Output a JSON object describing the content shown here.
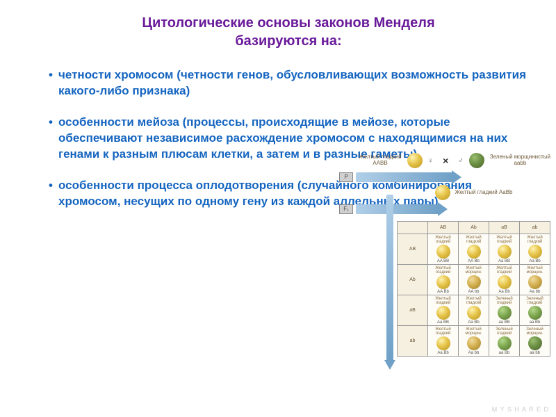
{
  "title_line1": "Цитологические основы законов Менделя",
  "title_line2": "базируются на:",
  "bullets": [
    "четности хромосом (четности генов, обусловливающих возможность развития какого-либо признака)",
    "особенности мейоза (процессы, происходящие в мейозе, которые обеспечивают независимое расхождение хромосом с находящимися на них генами к разным плюсам клетки, а затем и в разные гаметы)",
    "особенности процесса оплодотворения (случайного комбинирования хромосом, несущих по одному гену из каждой аллельных пары)"
  ],
  "colors": {
    "title": "#6a1b9a",
    "bullet_text": "#1565c0",
    "arrow_grad_start": "#b0cfe8",
    "arrow_grad_end": "#6fa0c7",
    "cell_label": "#8a6d3b",
    "border": "#999999",
    "background": "#ffffff"
  },
  "diagram": {
    "parent_female": {
      "label": "Желтый гладкий",
      "genotype": "AABB",
      "phenotype": "yellow-smooth"
    },
    "parent_male": {
      "label": "Зеленый морщинистый",
      "genotype": "aabb",
      "phenotype": "green-wrinkled"
    },
    "f1": {
      "label": "Желтый гладкий",
      "genotype": "AaBb",
      "phenotype": "yellow-smooth"
    },
    "gen_tags": [
      "P",
      "F₁",
      "F₂"
    ],
    "gametes": [
      "AB",
      "Ab",
      "aB",
      "ab"
    ],
    "cross_symbol": "×",
    "female_symbol": "♀",
    "male_symbol": "♂",
    "punnett": {
      "col_headers": [
        "AB",
        "Ab",
        "aB",
        "ab"
      ],
      "row_headers": [
        "AB",
        "Ab",
        "aB",
        "ab"
      ],
      "cells": [
        [
          {
            "label": "Желтый гладкий",
            "geno": "AA BB",
            "pea": "yellow-smooth"
          },
          {
            "label": "Желтый гладкий",
            "geno": "AA Bb",
            "pea": "yellow-smooth"
          },
          {
            "label": "Желтый гладкий",
            "geno": "Aa BB",
            "pea": "yellow-smooth"
          },
          {
            "label": "Желтый гладкий",
            "geno": "Aa Bb",
            "pea": "yellow-smooth"
          }
        ],
        [
          {
            "label": "Желтый гладкий",
            "geno": "AA Bb",
            "pea": "yellow-smooth"
          },
          {
            "label": "Желтый морщин.",
            "geno": "AA bb",
            "pea": "yellow-wrinkled"
          },
          {
            "label": "Желтый гладкий",
            "geno": "Aa Bb",
            "pea": "yellow-smooth"
          },
          {
            "label": "Желтый морщин.",
            "geno": "Aa bb",
            "pea": "yellow-wrinkled"
          }
        ],
        [
          {
            "label": "Желтый гладкий",
            "geno": "Aa BB",
            "pea": "yellow-smooth"
          },
          {
            "label": "Желтый гладкий",
            "geno": "Aa Bb",
            "pea": "yellow-smooth"
          },
          {
            "label": "Зеленый гладкий",
            "geno": "aa BB",
            "pea": "green-smooth"
          },
          {
            "label": "Зеленый гладкий",
            "geno": "aa Bb",
            "pea": "green-smooth"
          }
        ],
        [
          {
            "label": "Желтый гладкий",
            "geno": "Aa Bb",
            "pea": "yellow-smooth"
          },
          {
            "label": "Желтый морщин.",
            "geno": "Aa bb",
            "pea": "yellow-wrinkled"
          },
          {
            "label": "Зеленый гладкий",
            "geno": "aa Bb",
            "pea": "green-smooth"
          },
          {
            "label": "Зеленый морщин.",
            "geno": "aa bb",
            "pea": "green-wrinkled"
          }
        ]
      ]
    }
  },
  "watermark": "M Y S H A R E D"
}
